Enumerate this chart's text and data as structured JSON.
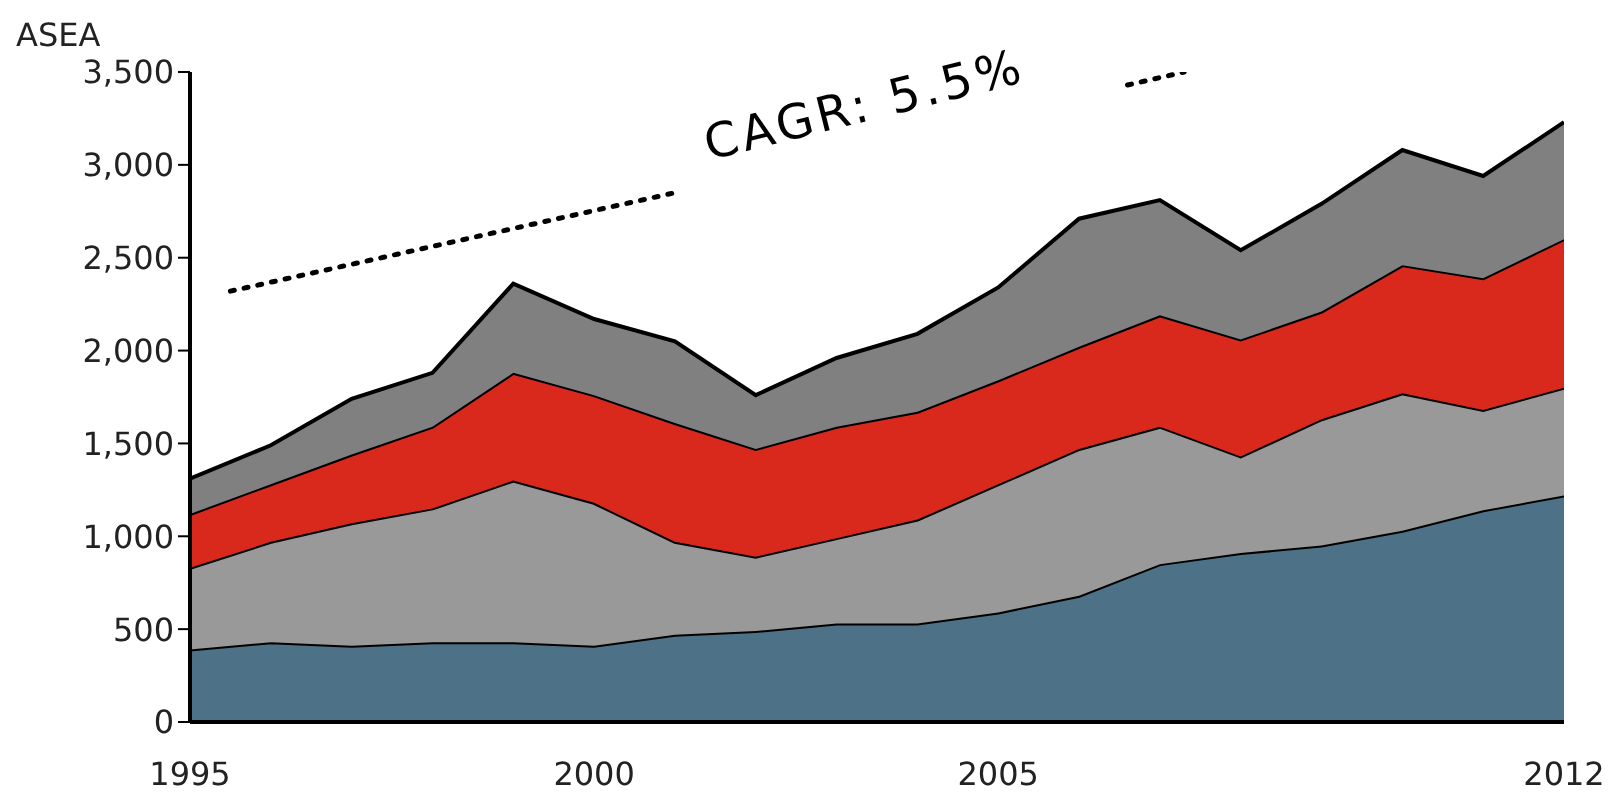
{
  "chart_data": {
    "type": "area",
    "title": "ASEA",
    "stacked": true,
    "x": [
      1995,
      1996,
      1997,
      1998,
      1999,
      2000,
      2001,
      2002,
      2003,
      2004,
      2005,
      2006,
      2007,
      2008,
      2009,
      2010,
      2011,
      2012
    ],
    "series": [
      {
        "color": "#4d7187",
        "values": [
          390,
          430,
          410,
          430,
          430,
          410,
          470,
          490,
          530,
          530,
          590,
          680,
          850,
          910,
          950,
          1030,
          1140,
          1220
        ]
      },
      {
        "color": "#999999",
        "values": [
          440,
          540,
          660,
          720,
          870,
          770,
          500,
          400,
          460,
          560,
          690,
          790,
          740,
          520,
          680,
          740,
          540,
          580
        ]
      },
      {
        "color": "#d9291c",
        "values": [
          290,
          310,
          370,
          440,
          580,
          580,
          640,
          580,
          600,
          580,
          560,
          550,
          600,
          630,
          580,
          690,
          710,
          800
        ]
      },
      {
        "color": "#808080",
        "values": [
          190,
          210,
          300,
          290,
          480,
          410,
          440,
          290,
          370,
          420,
          500,
          690,
          620,
          480,
          580,
          620,
          550,
          630
        ]
      },
      {
        "type": "line",
        "color": "#000000",
        "line_style": "dotted",
        "x": [
          1995.5,
          2001.0,
          2003.8,
          2006.6,
          2007.3
        ],
        "values": [
          2320,
          2850,
          null,
          3430,
          3500
        ]
      }
    ],
    "annotations": [
      "CAGR: 5.5%"
    ],
    "xlim": [
      1995,
      2012
    ],
    "xticks": [
      1995,
      2000,
      2005,
      2012
    ],
    "ylim": [
      0,
      3500
    ],
    "yticks": [
      0,
      500,
      {
        "value": 1000,
        "label": "1,000"
      },
      {
        "value": 1500,
        "label": "1,500"
      },
      {
        "value": 2000,
        "label": "2,000"
      },
      {
        "value": 2500,
        "label": "2,500"
      },
      {
        "value": 3000,
        "label": "3,000"
      },
      {
        "value": 3500,
        "label": "3,500"
      }
    ],
    "grid": false,
    "legend": false
  }
}
